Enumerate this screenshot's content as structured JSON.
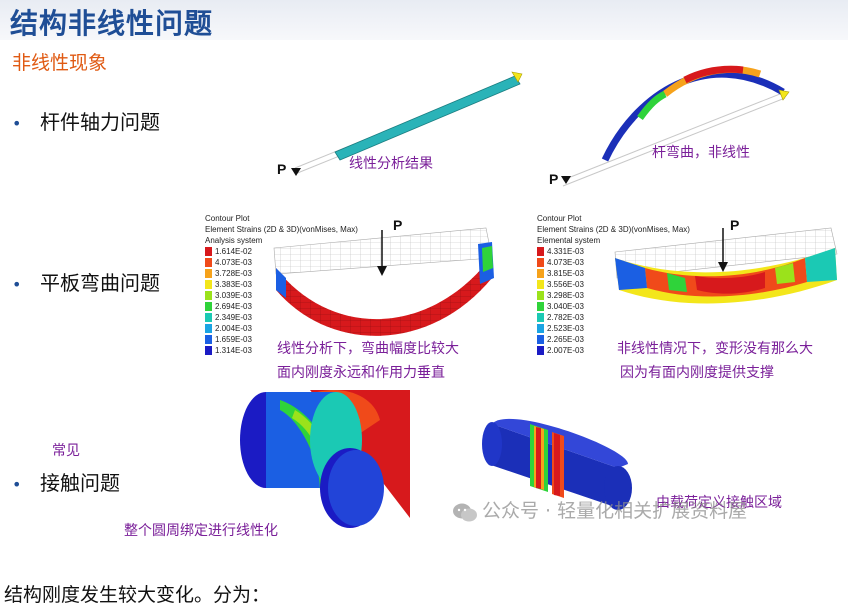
{
  "slide": {
    "title": "结构非线性问题",
    "subtitle": "非线性现象",
    "bullets": [
      {
        "label": "杆件轴力问题"
      },
      {
        "label": "平板弯曲问题"
      },
      {
        "label": "接触问题"
      }
    ],
    "annotations": {
      "linear_result": "线性分析结果",
      "rod_bending": "杆弯曲，非线性",
      "linear_plate_line1": "线性分析下，弯曲幅度比较大",
      "linear_plate_line2": "面内刚度永远和作用力垂直",
      "nonlinear_plate_line1": "非线性情况下，变形没有那么大",
      "nonlinear_plate_line2": "因为有面内刚度提供支撑",
      "common": "常见",
      "circle_bind": "整个圆周绑定进行线性化",
      "contact_region": "由载荷定义接触区域",
      "force_label": "P"
    },
    "legend_left": {
      "header": [
        "Contour Plot",
        "Element Strains (2D & 3D)(vonMises, Max)",
        "Analysis system"
      ],
      "values": [
        "1.614E-02",
        "4.073E-03",
        "3.728E-03",
        "3.383E-03",
        "3.039E-03",
        "2.694E-03",
        "2.349E-03",
        "2.004E-03",
        "1.659E-03",
        "1.314E-03"
      ]
    },
    "legend_right": {
      "header": [
        "Contour Plot",
        "Element Strains (2D & 3D)(vonMises, Max)",
        "Elemental system"
      ],
      "values": [
        "4.331E-03",
        "4.073E-03",
        "3.815E-03",
        "3.556E-03",
        "3.298E-03",
        "3.040E-03",
        "2.782E-03",
        "2.523E-03",
        "2.265E-03",
        "2.007E-03"
      ]
    },
    "legend_colors": [
      "#d7191c",
      "#f04a1a",
      "#f6a21b",
      "#f3e61b",
      "#9be21b",
      "#2fd33a",
      "#1bc9b4",
      "#1ba4e3",
      "#1b5fe3",
      "#1b1bc4"
    ]
  },
  "watermark": "公众号 · 轻量化相关扩展资料屋",
  "caption": "结构刚度发生较大变化。分为："
}
